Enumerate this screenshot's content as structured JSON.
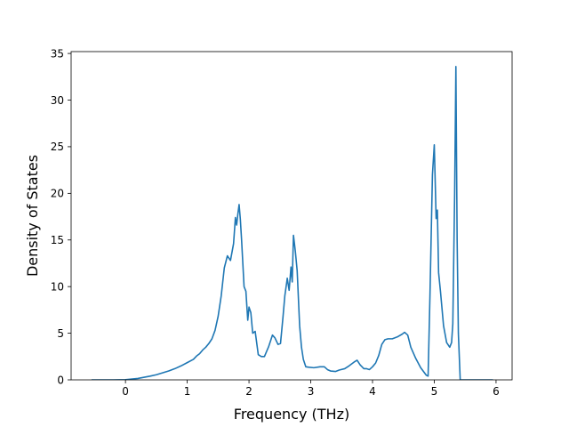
{
  "chart_data": {
    "type": "line",
    "title": "",
    "xlabel": "Frequency (THz)",
    "ylabel": "Density of States",
    "xlim": [
      -0.88,
      6.26
    ],
    "ylim": [
      0,
      35.2
    ],
    "xticks": [
      0,
      1,
      2,
      3,
      4,
      5,
      6
    ],
    "yticks": [
      0,
      5,
      10,
      15,
      20,
      25,
      30,
      35
    ],
    "grid": false,
    "legend": "none",
    "line_color": "#1f77b4",
    "series": [
      {
        "x": [
          -0.55,
          -0.4,
          -0.2,
          0.0,
          0.2,
          0.4,
          0.5,
          0.6,
          0.7,
          0.8,
          0.9,
          1.0,
          1.1,
          1.15,
          1.2,
          1.25,
          1.3,
          1.35,
          1.4,
          1.45,
          1.5,
          1.55,
          1.6,
          1.65,
          1.7,
          1.75,
          1.78,
          1.8,
          1.82,
          1.84,
          1.86,
          1.88,
          1.9,
          1.92,
          1.95,
          1.98,
          2.0,
          2.03,
          2.06,
          2.1,
          2.15,
          2.2,
          2.25,
          2.32,
          2.38,
          2.42,
          2.47,
          2.51,
          2.55,
          2.58,
          2.62,
          2.65,
          2.68,
          2.7,
          2.72,
          2.75,
          2.78,
          2.82,
          2.85,
          2.88,
          2.92,
          2.97,
          3.05,
          3.15,
          3.22,
          3.27,
          3.32,
          3.4,
          3.46,
          3.55,
          3.62,
          3.7,
          3.75,
          3.8,
          3.86,
          3.9,
          3.95,
          4.0,
          4.05,
          4.1,
          4.15,
          4.2,
          4.25,
          4.32,
          4.4,
          4.48,
          4.52,
          4.57,
          4.62,
          4.7,
          4.78,
          4.87,
          4.9,
          4.93,
          4.97,
          5.0,
          5.03,
          5.05,
          5.07,
          5.1,
          5.15,
          5.2,
          5.25,
          5.28,
          5.3,
          5.33,
          5.35,
          5.37,
          5.39,
          5.42,
          5.5,
          5.7,
          5.95
        ],
        "y": [
          0,
          0,
          0,
          0.02,
          0.15,
          0.4,
          0.55,
          0.75,
          0.95,
          1.2,
          1.5,
          1.85,
          2.2,
          2.55,
          2.8,
          3.2,
          3.5,
          3.9,
          4.4,
          5.3,
          6.8,
          9.0,
          12.0,
          13.3,
          12.8,
          14.6,
          17.4,
          16.6,
          17.8,
          18.8,
          17.2,
          15.0,
          12.5,
          10.0,
          9.5,
          6.4,
          7.8,
          7.2,
          5.0,
          5.2,
          2.7,
          2.5,
          2.5,
          3.6,
          4.8,
          4.5,
          3.8,
          3.9,
          6.7,
          9.0,
          10.9,
          9.6,
          12.1,
          10.5,
          15.5,
          13.8,
          11.7,
          5.8,
          3.5,
          2.2,
          1.4,
          1.35,
          1.3,
          1.4,
          1.4,
          1.1,
          0.95,
          0.9,
          1.05,
          1.2,
          1.5,
          1.9,
          2.1,
          1.6,
          1.2,
          1.2,
          1.1,
          1.4,
          1.8,
          2.6,
          3.8,
          4.3,
          4.4,
          4.4,
          4.6,
          4.9,
          5.1,
          4.8,
          3.5,
          2.3,
          1.3,
          0.5,
          0.4,
          9.0,
          22.0,
          25.2,
          17.3,
          18.2,
          11.5,
          9.5,
          5.8,
          4.0,
          3.5,
          4.0,
          6.0,
          20.0,
          33.6,
          15.0,
          5.0,
          0,
          0,
          0,
          0
        ]
      }
    ]
  }
}
